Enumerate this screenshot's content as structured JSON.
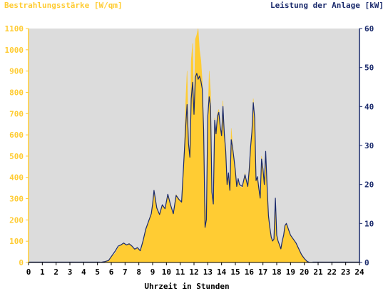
{
  "chart_data": {
    "type": "area",
    "left_axis_title": "Bestrahlungsstärke [W/qm]",
    "right_axis_title": "Leistung der Anlage [kW]",
    "xlabel": "Uhrzeit in Stunden",
    "xlim": [
      0,
      24
    ],
    "x_ticks": [
      0,
      1,
      2,
      3,
      4,
      5,
      6,
      7,
      8,
      9,
      10,
      11,
      12,
      13,
      14,
      15,
      16,
      17,
      18,
      19,
      20,
      21,
      22,
      23,
      24
    ],
    "y_left_lim": [
      0,
      1100
    ],
    "y_left_ticks": [
      0,
      100,
      200,
      300,
      400,
      500,
      600,
      700,
      800,
      900,
      1000,
      1100
    ],
    "y_right_lim": [
      0,
      60
    ],
    "y_right_ticks": [
      0,
      10,
      20,
      30,
      40,
      50,
      60
    ],
    "grid": false,
    "colors": {
      "plot_background": "#dcdcdc",
      "irradiance": "#ffcc33",
      "power": "#1a2a6c",
      "left_axis": "#ffcc33",
      "right_axis": "#1a2a6c",
      "axis_text": "#000000"
    },
    "series": [
      {
        "name": "Bestrahlungsstärke [W/qm]",
        "axis": "left",
        "x": [
          5.2,
          5.5,
          5.8,
          6.0,
          6.3,
          6.5,
          6.7,
          6.9,
          7.1,
          7.3,
          7.5,
          7.7,
          7.9,
          8.1,
          8.3,
          8.5,
          8.7,
          8.9,
          9.0,
          9.1,
          9.3,
          9.5,
          9.7,
          9.9,
          10.1,
          10.3,
          10.5,
          10.7,
          10.9,
          11.1,
          11.3,
          11.4,
          11.5,
          11.6,
          11.7,
          11.8,
          11.9,
          12.0,
          12.1,
          12.2,
          12.3,
          12.4,
          12.5,
          12.6,
          12.7,
          12.8,
          12.9,
          13.0,
          13.1,
          13.2,
          13.3,
          13.4,
          13.5,
          13.6,
          13.7,
          13.8,
          13.9,
          14.0,
          14.1,
          14.2,
          14.3,
          14.4,
          14.5,
          14.6,
          14.7,
          14.8,
          14.9,
          15.0,
          15.1,
          15.2,
          15.3,
          15.5,
          15.7,
          15.9,
          16.0,
          16.1,
          16.2,
          16.3,
          16.4,
          16.5,
          16.6,
          16.7,
          16.8,
          16.9,
          17.0,
          17.1,
          17.2,
          17.3,
          17.4,
          17.5,
          17.6,
          17.7,
          17.8,
          17.9,
          18.0,
          18.1,
          18.2,
          18.3,
          18.4,
          18.5,
          18.6,
          18.7,
          18.8,
          18.9,
          19.0,
          19.2,
          19.4,
          19.6,
          19.8,
          20.0,
          20.2,
          20.4,
          20.6
        ],
        "y": [
          0,
          5,
          10,
          25,
          45,
          70,
          85,
          90,
          80,
          90,
          75,
          60,
          70,
          50,
          100,
          160,
          190,
          230,
          280,
          340,
          260,
          220,
          270,
          250,
          320,
          270,
          230,
          320,
          300,
          280,
          540,
          760,
          900,
          550,
          500,
          950,
          1030,
          680,
          1050,
          1070,
          1100,
          1000,
          950,
          850,
          620,
          300,
          200,
          650,
          900,
          800,
          300,
          260,
          680,
          580,
          700,
          720,
          640,
          600,
          760,
          600,
          520,
          350,
          420,
          330,
          630,
          550,
          480,
          430,
          360,
          390,
          360,
          350,
          420,
          350,
          430,
          540,
          620,
          770,
          680,
          380,
          400,
          350,
          300,
          500,
          440,
          360,
          500,
          350,
          220,
          160,
          120,
          100,
          110,
          300,
          130,
          100,
          80,
          60,
          100,
          120,
          170,
          185,
          160,
          150,
          130,
          110,
          90,
          60,
          40,
          20,
          5,
          0,
          0
        ],
        "fill": "#ffcc33"
      },
      {
        "name": "Leistung der Anlage [kW]",
        "axis": "right",
        "x": [
          5.2,
          5.5,
          5.8,
          6.0,
          6.3,
          6.5,
          6.7,
          6.9,
          7.1,
          7.3,
          7.5,
          7.7,
          7.9,
          8.1,
          8.3,
          8.5,
          8.7,
          8.9,
          9.0,
          9.1,
          9.3,
          9.5,
          9.7,
          9.9,
          10.1,
          10.3,
          10.5,
          10.7,
          10.9,
          11.1,
          11.3,
          11.4,
          11.5,
          11.6,
          11.7,
          11.8,
          11.9,
          12.0,
          12.1,
          12.2,
          12.3,
          12.4,
          12.5,
          12.6,
          12.7,
          12.8,
          12.9,
          13.0,
          13.1,
          13.2,
          13.3,
          13.4,
          13.5,
          13.6,
          13.7,
          13.8,
          13.9,
          14.0,
          14.1,
          14.2,
          14.3,
          14.4,
          14.5,
          14.6,
          14.7,
          14.8,
          14.9,
          15.0,
          15.1,
          15.2,
          15.3,
          15.5,
          15.7,
          15.9,
          16.0,
          16.1,
          16.2,
          16.3,
          16.4,
          16.5,
          16.6,
          16.7,
          16.8,
          16.9,
          17.0,
          17.1,
          17.2,
          17.3,
          17.4,
          17.5,
          17.6,
          17.7,
          17.8,
          17.9,
          18.0,
          18.1,
          18.2,
          18.3,
          18.4,
          18.5,
          18.6,
          18.7,
          18.8,
          18.9,
          19.0,
          19.2,
          19.4,
          19.6,
          19.8,
          20.0,
          20.2,
          20.4,
          20.6
        ],
        "y": [
          0,
          0.2,
          0.5,
          1.5,
          3,
          4.2,
          4.5,
          5,
          4.5,
          4.8,
          4.2,
          3.4,
          3.8,
          3,
          5.5,
          8.5,
          10.5,
          12.5,
          15,
          18.5,
          14,
          12.3,
          14.8,
          13.8,
          17.5,
          14.8,
          12.5,
          17.2,
          16.2,
          15.5,
          28.5,
          35,
          40.5,
          30.5,
          27,
          42,
          46.2,
          38,
          47.5,
          48.5,
          47,
          47.8,
          46.5,
          44.5,
          34,
          9,
          11,
          37.5,
          42.5,
          40,
          18,
          15,
          36.5,
          33,
          37.5,
          38.5,
          35,
          32.5,
          40,
          33,
          28.5,
          20,
          23,
          18.5,
          31.5,
          29.5,
          26.5,
          23.5,
          19.5,
          21.5,
          20,
          19.5,
          22.5,
          19.5,
          23.5,
          29.5,
          33.5,
          41,
          37,
          21,
          22,
          19,
          16.5,
          26.5,
          24,
          20,
          28.5,
          19.5,
          12,
          9,
          6.5,
          5.5,
          6,
          16.5,
          7,
          5.5,
          4.5,
          3.5,
          5.5,
          7,
          9.5,
          10,
          9,
          8,
          7,
          6,
          5,
          3.5,
          2,
          1,
          0.3,
          0,
          0
        ],
        "line": "#1a2a6c"
      }
    ]
  }
}
